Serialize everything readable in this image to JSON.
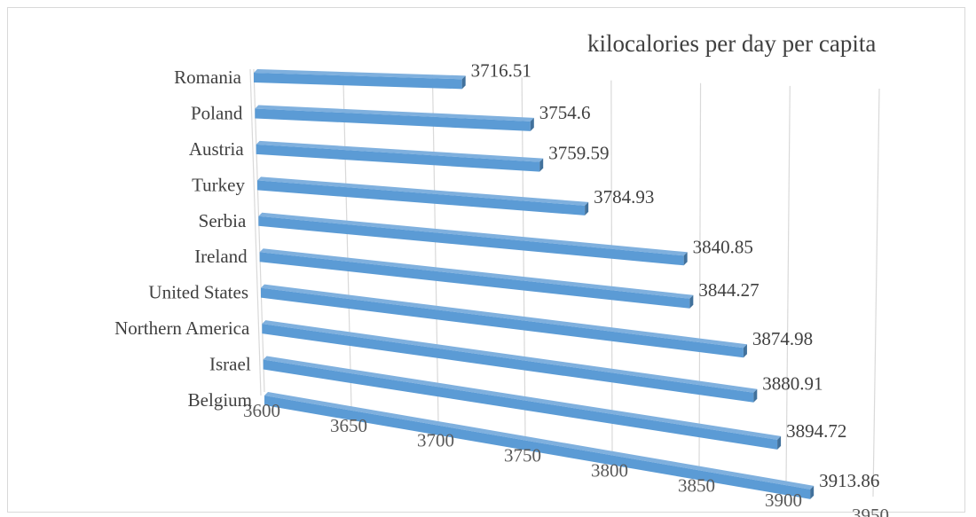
{
  "chart_data": {
    "type": "bar",
    "orientation": "horizontal",
    "style": "3d",
    "title": "kilocalories per day per capita",
    "categories": [
      "Romania",
      "Poland",
      "Austria",
      "Turkey",
      "Serbia",
      "Ireland",
      "United States",
      "Northern America",
      "Israel",
      "Belgium"
    ],
    "values": [
      3716.51,
      3754.6,
      3759.59,
      3784.93,
      3840.85,
      3844.27,
      3874.98,
      3880.91,
      3894.72,
      3913.86
    ],
    "value_labels": [
      "3716.51",
      "3754.6",
      "3759.59",
      "3784.93",
      "3840.85",
      "3844.27",
      "3874.98",
      "3880.91",
      "3894.72",
      "3913.86"
    ],
    "x_ticks": [
      "3600",
      "3650",
      "3700",
      "3750",
      "3800",
      "3850",
      "3900",
      "3950"
    ],
    "xlim": [
      3600,
      3950
    ],
    "grid": true,
    "legend": "none",
    "bar_color": "#5b9bd5",
    "bar_side_color": "#41719c"
  }
}
